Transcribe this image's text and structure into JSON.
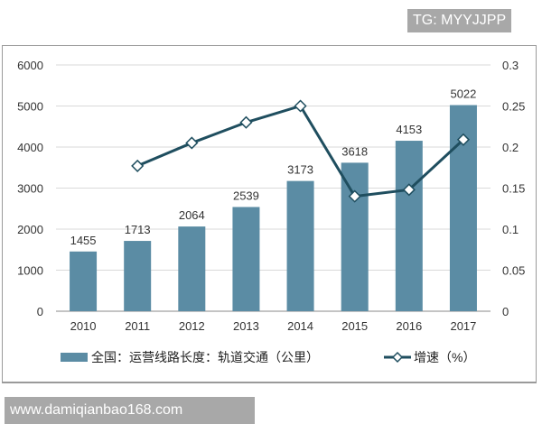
{
  "watermarks": {
    "top": "TG: MYYJJPP",
    "bottom": "www.damiqianbao168.com"
  },
  "chart_data": {
    "type": "bar+line",
    "categories": [
      "2010",
      "2011",
      "2012",
      "2013",
      "2014",
      "2015",
      "2016",
      "2017"
    ],
    "series": [
      {
        "name": "全国：运营线路长度：轨道交通（公里）",
        "type": "bar",
        "axis": "left",
        "color": "#5b8ca4",
        "values": [
          1455,
          1713,
          2064,
          2539,
          3173,
          3618,
          4153,
          5022
        ],
        "labels": [
          "1455",
          "1713",
          "2064",
          "2539",
          "3173",
          "3618",
          "4153",
          "5022"
        ]
      },
      {
        "name": "增速（%）",
        "type": "line",
        "axis": "right",
        "color": "#1f4e5f",
        "marker": "hollow-diamond",
        "values": [
          null,
          0.177,
          0.205,
          0.23,
          0.25,
          0.14,
          0.148,
          0.209
        ]
      }
    ],
    "yleft": {
      "lim": [
        0,
        6000
      ],
      "ticks": [
        "0",
        "1000",
        "2000",
        "3000",
        "4000",
        "5000",
        "6000"
      ]
    },
    "yright": {
      "lim": [
        0,
        0.3
      ],
      "ticks": [
        "0",
        "0.05",
        "0.1",
        "0.15",
        "0.2",
        "0.25",
        "0.3"
      ]
    },
    "grid": "horizontal",
    "legend": "bottom"
  }
}
